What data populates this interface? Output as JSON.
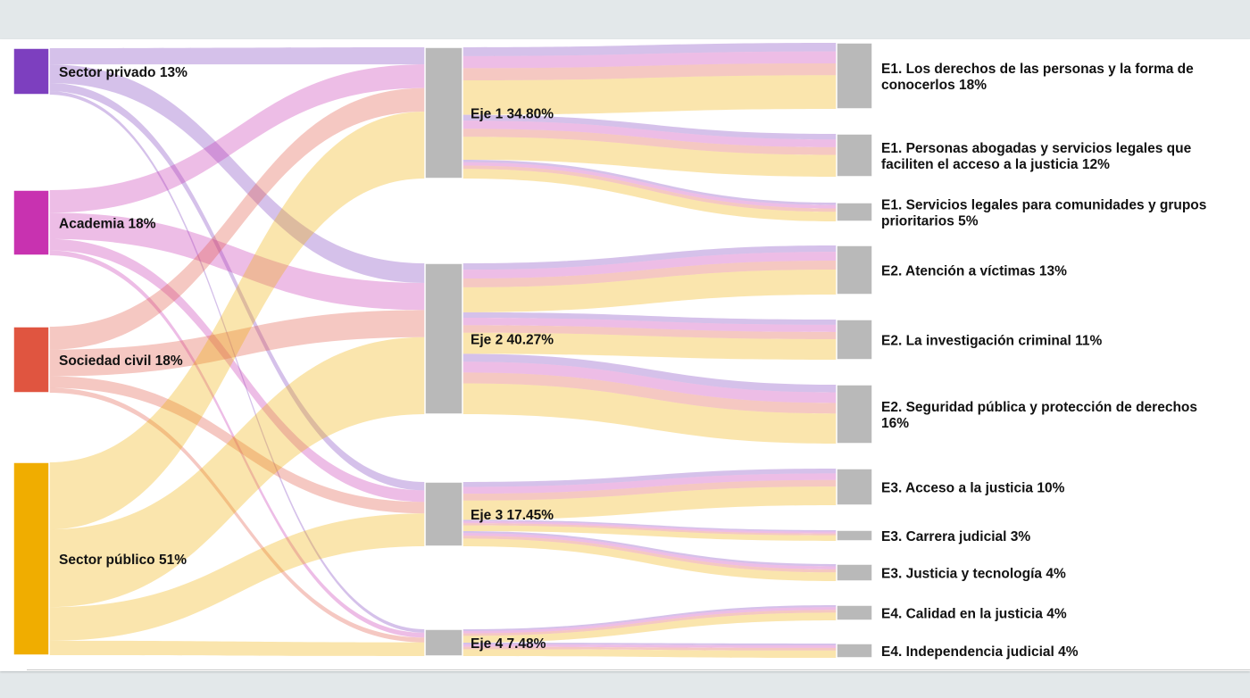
{
  "chart_data": {
    "type": "sankey",
    "title": "",
    "colors": {
      "sector_privado": "#7d3fbf",
      "academia": "#c832b0",
      "sociedad_civil": "#e05540",
      "sector_publico": "#f0ad00",
      "node_gray": "#b9b9b9"
    },
    "sources": [
      {
        "id": "sector_privado",
        "label": "Sector privado 13%",
        "value": 13
      },
      {
        "id": "academia",
        "label": "Academia 18%",
        "value": 18
      },
      {
        "id": "sociedad_civil",
        "label": "Sociedad civil 18%",
        "value": 18
      },
      {
        "id": "sector_publico",
        "label": "Sector público 51%",
        "value": 51
      }
    ],
    "ejes": [
      {
        "id": "eje1",
        "label": "Eje 1 34.80%",
        "value": 34.8
      },
      {
        "id": "eje2",
        "label": "Eje 2 40.27%",
        "value": 40.27
      },
      {
        "id": "eje3",
        "label": "Eje 3 17.45%",
        "value": 17.45
      },
      {
        "id": "eje4",
        "label": "Eje 4 7.48%",
        "value": 7.48
      }
    ],
    "targets": [
      {
        "id": "e1a",
        "eje": "eje1",
        "label_lines": [
          "E1. Los derechos de las personas y la forma de",
          "conocerlos 18%"
        ],
        "value": 18
      },
      {
        "id": "e1b",
        "eje": "eje1",
        "label_lines": [
          "E1. Personas abogadas y servicios legales que",
          "faciliten el acceso a la justicia 12%"
        ],
        "value": 12
      },
      {
        "id": "e1c",
        "eje": "eje1",
        "label_lines": [
          "E1. Servicios legales para comunidades y grupos",
          "prioritarios 5%"
        ],
        "value": 5
      },
      {
        "id": "e2a",
        "eje": "eje2",
        "label_lines": [
          "E2. Atención a víctimas 13%"
        ],
        "value": 13
      },
      {
        "id": "e2b",
        "eje": "eje2",
        "label_lines": [
          "E2. La investigación criminal 11%"
        ],
        "value": 11
      },
      {
        "id": "e2c",
        "eje": "eje2",
        "label_lines": [
          "E2. Seguridad pública y protección de derechos",
          "16%"
        ],
        "value": 16
      },
      {
        "id": "e3a",
        "eje": "eje3",
        "label_lines": [
          "E3. Acceso a la justicia 10%"
        ],
        "value": 10
      },
      {
        "id": "e3b",
        "eje": "eje3",
        "label_lines": [
          "E3. Carrera judicial 3%"
        ],
        "value": 3
      },
      {
        "id": "e3c",
        "eje": "eje3",
        "label_lines": [
          "E3. Justicia y tecnología 4%"
        ],
        "value": 4
      },
      {
        "id": "e4a",
        "eje": "eje4",
        "label_lines": [
          "E4. Calidad en la justicia 4%"
        ],
        "value": 4
      },
      {
        "id": "e4b",
        "eje": "eje4",
        "label_lines": [
          "E4. Independencia judicial 4%"
        ],
        "value": 4
      }
    ]
  }
}
